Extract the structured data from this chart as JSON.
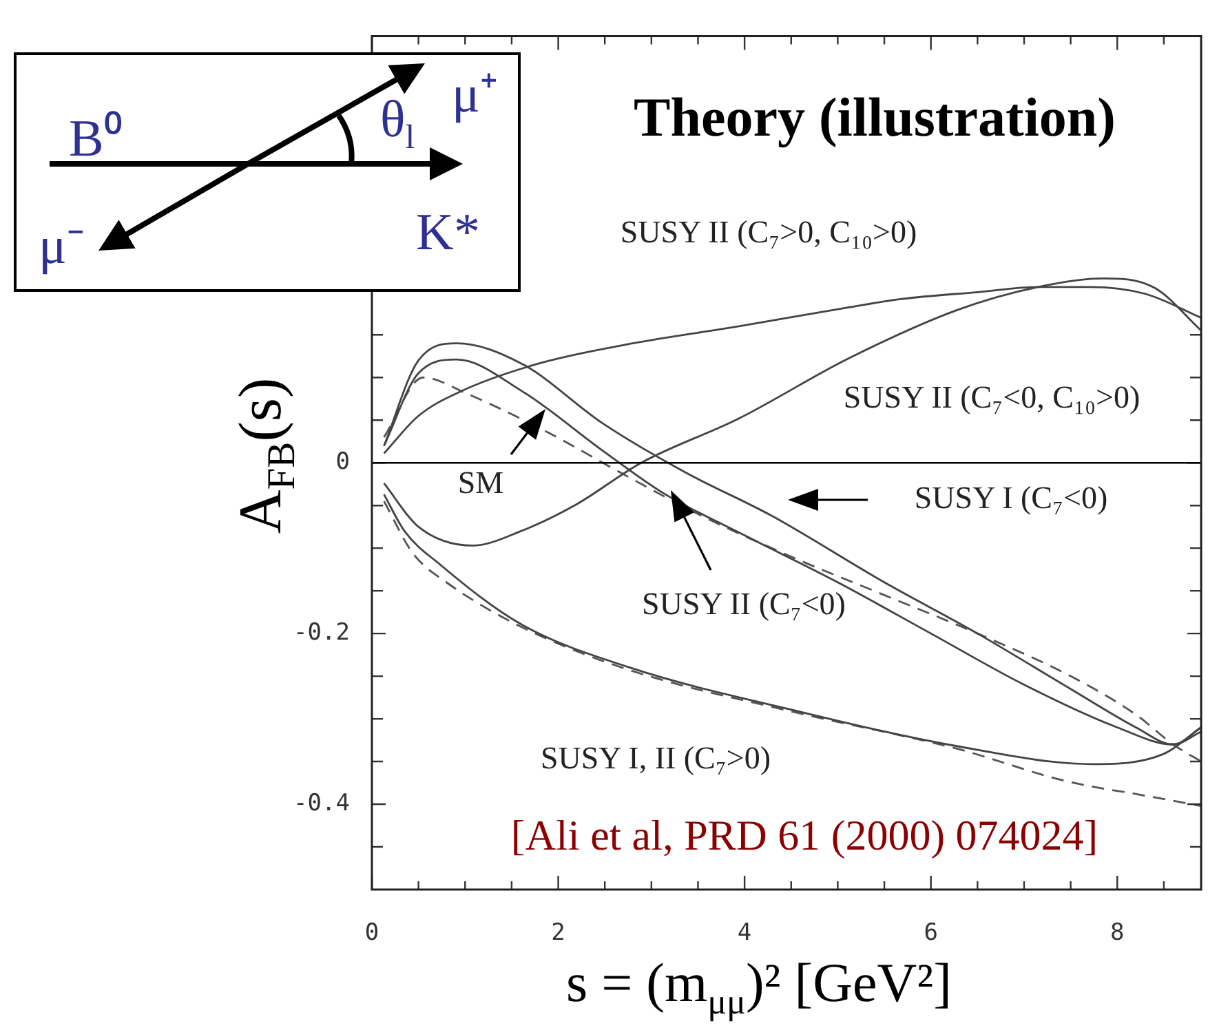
{
  "chart_data": {
    "type": "line",
    "title": "Theory (illustration)",
    "xlabel": "s = (m$_{μμ}$)² [GeV²]",
    "ylabel": "A$_{FB}$(s)",
    "xlim": [
      0,
      8.9
    ],
    "ylim": [
      -0.5,
      0.5
    ],
    "xticks": [
      0,
      {
        "value": 0.5,
        "label": null
      },
      {
        "value": 1,
        "label": null
      },
      {
        "value": 1.5,
        "label": null
      },
      2,
      {
        "value": 2.5,
        "label": null
      },
      {
        "value": 3,
        "label": null
      },
      {
        "value": 3.5,
        "label": null
      },
      4,
      {
        "value": 4.5,
        "label": null
      },
      {
        "value": 5,
        "label": null
      },
      {
        "value": 5.5,
        "label": null
      },
      6,
      {
        "value": 6.5,
        "label": null
      },
      {
        "value": 7,
        "label": null
      },
      {
        "value": 7.5,
        "label": null
      },
      8,
      {
        "value": 8.5,
        "label": null
      }
    ],
    "yticks": [
      {
        "value": -0.45,
        "label": null
      },
      -0.4,
      {
        "value": -0.35,
        "label": null
      },
      {
        "value": -0.3,
        "label": null
      },
      {
        "value": -0.25,
        "label": null
      },
      -0.2,
      {
        "value": -0.15,
        "label": null
      },
      {
        "value": -0.1,
        "label": null
      },
      {
        "value": -0.05,
        "label": null
      },
      0,
      {
        "value": 0.05,
        "label": null
      },
      {
        "value": 0.1,
        "label": null
      },
      {
        "value": 0.15,
        "label": null
      }
    ],
    "grid": false,
    "legend": false,
    "marker": "none",
    "ref_lines": [
      {
        "axis": "y",
        "value": 0,
        "color": "#000000"
      }
    ],
    "series": [
      {
        "color": "#444444",
        "line_style": "solid",
        "x": [
          0.13,
          0.5,
          0.96,
          1.78,
          2.8,
          3.94,
          5.11,
          5.69,
          6.5,
          7.15,
          7.7,
          8.3,
          8.9
        ],
        "values": [
          0.011,
          0.055,
          0.084,
          0.116,
          0.14,
          0.16,
          0.182,
          0.192,
          0.2,
          0.206,
          0.206,
          0.198,
          0.17
        ]
      },
      {
        "color": "#444444",
        "line_style": "solid",
        "x": [
          0.13,
          0.5,
          1.08,
          1.6,
          2.19,
          2.89,
          3.94,
          5.11,
          6.28,
          7.15,
          7.85,
          8.4,
          8.9
        ],
        "values": [
          -0.024,
          -0.075,
          -0.097,
          -0.08,
          -0.049,
          0,
          0.052,
          0.122,
          0.179,
          0.206,
          0.216,
          0.205,
          0.155
        ]
      },
      {
        "color": "#444444",
        "line_style": "solid",
        "x": [
          0.13,
          0.5,
          0.91,
          1.61,
          2.48,
          3.36,
          4.29,
          5.5,
          6.5,
          7.5,
          8.2,
          8.6,
          8.9
        ],
        "values": [
          0.02,
          0.12,
          0.14,
          0.116,
          0.046,
          -0.011,
          -0.062,
          -0.14,
          -0.2,
          -0.265,
          -0.31,
          -0.33,
          -0.31
        ]
      },
      {
        "color": "#444444",
        "line_style": "solid",
        "x": [
          0.13,
          0.5,
          0.91,
          1.61,
          2.48,
          3.12,
          4,
          5,
          6,
          7,
          8,
          8.6,
          8.9
        ],
        "values": [
          0.02,
          0.105,
          0.121,
          0.084,
          0.014,
          -0.035,
          -0.085,
          -0.14,
          -0.2,
          -0.26,
          -0.31,
          -0.33,
          -0.315
        ]
      },
      {
        "color": "#555555",
        "line_style": "dashed",
        "x": [
          0.13,
          0.55,
          1.02,
          1.9,
          2.66,
          3.5,
          4.5,
          5.5,
          6.5,
          7.5,
          8.2,
          8.6,
          8.9
        ],
        "values": [
          0.03,
          0.1,
          0.081,
          0.035,
          -0.011,
          -0.06,
          -0.11,
          -0.155,
          -0.2,
          -0.25,
          -0.295,
          -0.33,
          -0.35
        ]
      },
      {
        "color": "#444444",
        "line_style": "solid",
        "x": [
          0.13,
          0.35,
          0.73,
          1.6,
          2.77,
          4.53,
          6.28,
          7.74,
          8.5,
          8.9
        ],
        "values": [
          -0.037,
          -0.08,
          -0.119,
          -0.189,
          -0.24,
          -0.29,
          -0.332,
          -0.353,
          -0.341,
          -0.31
        ]
      },
      {
        "color": "#555555",
        "line_style": "dashed",
        "x": [
          0.13,
          0.44,
          0.8,
          1.6,
          2.77,
          4.53,
          6.28,
          7.45,
          8.3,
          8.9
        ],
        "values": [
          -0.045,
          -0.106,
          -0.14,
          -0.192,
          -0.243,
          -0.292,
          -0.335,
          -0.373,
          -0.39,
          -0.402
        ]
      }
    ],
    "annotations": [
      "SUSY II (C₇>0, C₁₀>0)",
      "SUSY II (C₇<0, C₁₀>0)",
      "SM",
      "SUSY I (C₇<0)",
      "SUSY II (C₇<0)",
      "SUSY I, II (C₇>0)",
      "[Ali et al, PRD 61 (2000) 074024]",
      "B⁰",
      "μ⁺",
      "μ⁻",
      "K*",
      "θ$_{l}$"
    ]
  }
}
